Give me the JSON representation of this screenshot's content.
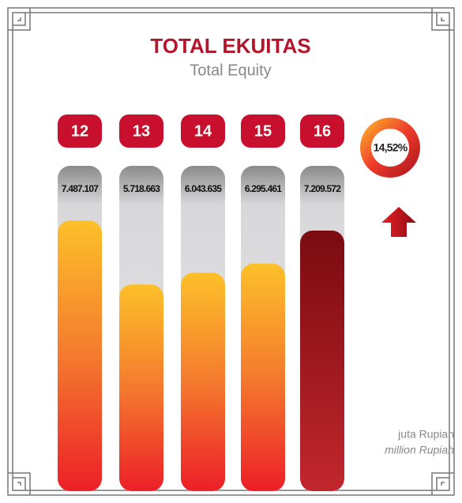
{
  "chart_data": {
    "type": "bar",
    "title": "TOTAL EKUITAS",
    "subtitle": "Total Equity",
    "categories": [
      "12",
      "13",
      "14",
      "15",
      "16"
    ],
    "values": [
      7487107,
      5718663,
      6043635,
      6295461,
      7209572
    ],
    "value_labels": [
      "7.487.107",
      "5.718.663",
      "6.043.635",
      "6.295.461",
      "7.209.572"
    ],
    "ylim": [
      0,
      9000000
    ],
    "growth": {
      "value": 14.52,
      "label": "14,52%"
    },
    "unit": "juta Rupiah",
    "unit_en": "million Rupiah"
  }
}
